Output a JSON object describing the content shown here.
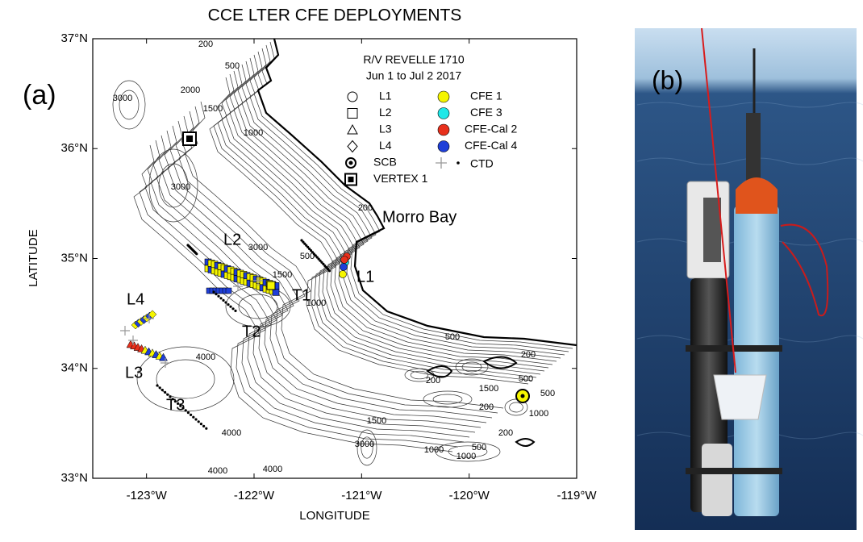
{
  "figure": {
    "title": "CCE LTER CFE DEPLOYMENTS",
    "panel_a": "(a)",
    "panel_b": "(b)"
  },
  "map": {
    "x_label": "LONGITUDE",
    "y_label": "LATITUDE",
    "xlim": [
      -123.5,
      -119
    ],
    "ylim": [
      33,
      37
    ],
    "xticks": [
      {
        "value": -123,
        "label": "-123°W"
      },
      {
        "value": -122,
        "label": "-122°W"
      },
      {
        "value": -121,
        "label": "-121°W"
      },
      {
        "value": -120,
        "label": "-120°W"
      },
      {
        "value": -119,
        "label": "-119°W"
      }
    ],
    "yticks": [
      {
        "value": 33,
        "label": "33°N"
      },
      {
        "value": 34,
        "label": "34°N"
      },
      {
        "value": 35,
        "label": "35°N"
      },
      {
        "value": 36,
        "label": "36°N"
      },
      {
        "value": 37,
        "label": "37°N"
      }
    ],
    "legend": {
      "title": [
        "R/V REVELLE 1710",
        "Jun 1 to Jul 2 2017"
      ],
      "symbols": [
        "L1",
        "L2",
        "L3",
        "L4",
        "SCB",
        "VERTEX 1"
      ],
      "colors": [
        {
          "label": "CFE 1",
          "color": "#f5f500"
        },
        {
          "label": "CFE 3",
          "color": "#20e8e8"
        },
        {
          "label": "CFE-Cal 2",
          "color": "#e8301c"
        },
        {
          "label": "CFE-Cal 4",
          "color": "#1f3fd8"
        }
      ],
      "ctd": "CTD"
    },
    "places": [
      "Morro Bay",
      "L1",
      "L2",
      "L3",
      "L4",
      "T1",
      "T2",
      "T3"
    ],
    "contour_labels": [
      "200",
      "500",
      "2000",
      "1500",
      "3000",
      "1000",
      "3000",
      "200",
      "3000",
      "500",
      "1500",
      "1000",
      "500",
      "200",
      "200",
      "1500",
      "500",
      "200",
      "500",
      "1000",
      "1500",
      "3000",
      "1000",
      "1000",
      "500",
      "4000",
      "4000",
      "4000",
      "4000",
      "200"
    ]
  }
}
